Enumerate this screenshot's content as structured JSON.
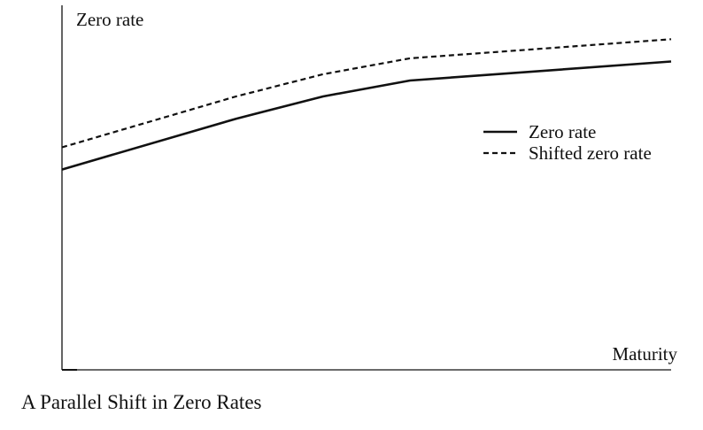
{
  "caption": "A Parallel Shift in Zero Rates",
  "chart_data": {
    "type": "line",
    "xlabel": "Maturity",
    "ylabel": "Zero rate",
    "x": [
      0,
      2,
      3,
      4,
      7
    ],
    "series": [
      {
        "name": "Zero rate",
        "values": [
          3.0,
          4.6,
          5.3,
          5.8,
          6.4
        ],
        "style": "solid"
      },
      {
        "name": "Shifted zero rate",
        "values": [
          3.7,
          5.3,
          6.0,
          6.5,
          7.1
        ],
        "style": "dashed"
      }
    ],
    "xlim": [
      0,
      7
    ],
    "ylim": [
      -3.3,
      8.0
    ],
    "grid": false,
    "legend": "right",
    "colors": {
      "line": "#111111",
      "axis": "#111111"
    }
  }
}
